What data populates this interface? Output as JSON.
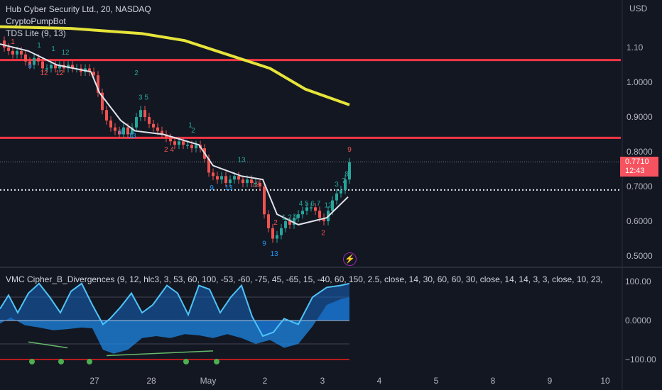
{
  "legend": {
    "symbol": "Hub Cyber Security Ltd., 20, NASDAQ",
    "indicator_1": "CryptoPumpBot",
    "indicator_2": "TDS Lite (9, 13)"
  },
  "price_badge": {
    "price": "0.7710",
    "countdown": "12:43"
  },
  "oscillator_legend": "VMC Cipher_B_Divergences (9, 12, hlc3, 3, 53, 60, 100, -53, -60, -75, 45, -65, 15, -40, 60, 150, 2.5, close, 14, 30, 60, 60, 30, close, 14, 14, 3, 3, close, 10, 23,",
  "colors": {
    "background": "#131722",
    "up": "#26a69a",
    "down": "#ef5350",
    "resistance": "#f23645",
    "ma_long": "#e6e43a",
    "ma_short": "#e0e3eb",
    "wave": "#2962ff"
  },
  "chart_data": [
    {
      "type": "candlestick",
      "title": "Hub Cyber Security Ltd., 20, NASDAQ",
      "currency": "USD",
      "ylim": [
        0.47,
        1.2
      ],
      "y_ticks": [
        "1.10",
        "1.0000",
        "0.9000",
        "0.8000",
        "0.7000",
        "0.6000",
        "0.5000"
      ],
      "x_ticks": [
        "27",
        "28",
        "May",
        "2",
        "3",
        "4",
        "5",
        "8",
        "9",
        "10"
      ],
      "last_price": 0.771,
      "horizontal_levels": [
        1.064,
        0.84
      ],
      "dotted_level": 0.69,
      "close_path": [
        [
          0,
          1.12
        ],
        [
          6,
          1.1
        ],
        [
          12,
          1.09
        ],
        [
          18,
          1.08
        ],
        [
          24,
          1.09
        ],
        [
          30,
          1.08
        ],
        [
          36,
          1.06
        ],
        [
          42,
          1.05
        ],
        [
          48,
          1.07
        ],
        [
          54,
          1.06
        ],
        [
          60,
          1.04
        ],
        [
          66,
          1.04
        ],
        [
          72,
          1.05
        ],
        [
          78,
          1.04
        ],
        [
          84,
          1.05
        ],
        [
          90,
          1.04
        ],
        [
          96,
          1.05
        ],
        [
          102,
          1.04
        ],
        [
          108,
          1.04
        ],
        [
          114,
          1.03
        ],
        [
          120,
          1.04
        ],
        [
          126,
          1.03
        ],
        [
          132,
          1.02
        ],
        [
          138,
          0.97
        ],
        [
          144,
          0.92
        ],
        [
          150,
          0.89
        ],
        [
          156,
          0.87
        ],
        [
          162,
          0.86
        ],
        [
          168,
          0.85
        ],
        [
          174,
          0.87
        ],
        [
          180,
          0.85
        ],
        [
          186,
          0.87
        ],
        [
          192,
          0.9
        ],
        [
          198,
          0.92
        ],
        [
          204,
          0.9
        ],
        [
          210,
          0.88
        ],
        [
          216,
          0.87
        ],
        [
          222,
          0.86
        ],
        [
          228,
          0.85
        ],
        [
          234,
          0.84
        ],
        [
          240,
          0.83
        ],
        [
          246,
          0.82
        ],
        [
          252,
          0.83
        ],
        [
          258,
          0.82
        ],
        [
          264,
          0.82
        ],
        [
          270,
          0.81
        ],
        [
          276,
          0.82
        ],
        [
          282,
          0.81
        ],
        [
          288,
          0.78
        ],
        [
          294,
          0.74
        ],
        [
          300,
          0.73
        ],
        [
          306,
          0.72
        ],
        [
          312,
          0.73
        ],
        [
          318,
          0.71
        ],
        [
          324,
          0.72
        ],
        [
          330,
          0.73
        ],
        [
          336,
          0.72
        ],
        [
          342,
          0.71
        ],
        [
          348,
          0.72
        ],
        [
          354,
          0.71
        ],
        [
          360,
          0.71
        ],
        [
          366,
          0.7
        ],
        [
          372,
          0.62
        ],
        [
          378,
          0.58
        ],
        [
          384,
          0.55
        ],
        [
          390,
          0.56
        ],
        [
          396,
          0.58
        ],
        [
          402,
          0.6
        ],
        [
          408,
          0.59
        ],
        [
          414,
          0.61
        ],
        [
          420,
          0.62
        ],
        [
          426,
          0.63
        ],
        [
          432,
          0.64
        ],
        [
          438,
          0.64
        ],
        [
          444,
          0.63
        ],
        [
          450,
          0.61
        ],
        [
          456,
          0.6
        ],
        [
          462,
          0.63
        ],
        [
          468,
          0.66
        ],
        [
          474,
          0.68
        ],
        [
          480,
          0.69
        ],
        [
          486,
          0.72
        ],
        [
          492,
          0.77
        ]
      ],
      "sma_path": [
        [
          0,
          1.11
        ],
        [
          40,
          1.09
        ],
        [
          80,
          1.05
        ],
        [
          128,
          1.03
        ],
        [
          140,
          0.97
        ],
        [
          170,
          0.89
        ],
        [
          190,
          0.86
        ],
        [
          230,
          0.85
        ],
        [
          280,
          0.82
        ],
        [
          300,
          0.76
        ],
        [
          340,
          0.73
        ],
        [
          370,
          0.72
        ],
        [
          390,
          0.62
        ],
        [
          420,
          0.59
        ],
        [
          460,
          0.61
        ],
        [
          490,
          0.67
        ]
      ],
      "long_ma_path": [
        [
          0,
          1.16
        ],
        [
          100,
          1.155
        ],
        [
          200,
          1.14
        ],
        [
          260,
          1.12
        ],
        [
          320,
          1.08
        ],
        [
          380,
          1.04
        ],
        [
          430,
          0.98
        ],
        [
          492,
          0.935
        ]
      ],
      "td_labels": [
        {
          "x": 18,
          "y": 1.11,
          "t": "1",
          "c": "down"
        },
        {
          "x": 42,
          "y": 1.04,
          "t": "9",
          "c": "blue"
        },
        {
          "x": 55,
          "y": 1.1,
          "t": "1",
          "c": "up"
        },
        {
          "x": 75,
          "y": 1.09,
          "t": "1",
          "c": "up"
        },
        {
          "x": 92,
          "y": 1.08,
          "t": "12",
          "c": "up"
        },
        {
          "x": 62,
          "y": 1.02,
          "t": "12",
          "c": "down"
        },
        {
          "x": 84,
          "y": 1.02,
          "t": "12",
          "c": "down"
        },
        {
          "x": 192,
          "y": 1.02,
          "t": "2",
          "c": "up"
        },
        {
          "x": 202,
          "y": 0.95,
          "t": "3 5",
          "c": "up"
        },
        {
          "x": 170,
          "y": 0.85,
          "t": "9",
          "c": "blue"
        },
        {
          "x": 186,
          "y": 0.84,
          "t": "13",
          "c": "blue"
        },
        {
          "x": 268,
          "y": 0.87,
          "t": "1",
          "c": "up"
        },
        {
          "x": 272,
          "y": 0.855,
          "t": "2",
          "c": "up"
        },
        {
          "x": 238,
          "y": 0.8,
          "t": "2 4",
          "c": "down"
        },
        {
          "x": 298,
          "y": 0.69,
          "t": "9",
          "c": "blue"
        },
        {
          "x": 322,
          "y": 0.69,
          "t": "13",
          "c": "blue"
        },
        {
          "x": 340,
          "y": 0.77,
          "t": "13",
          "c": "up"
        },
        {
          "x": 360,
          "y": 0.7,
          "t": "12",
          "c": "down"
        },
        {
          "x": 372,
          "y": 0.53,
          "t": "9",
          "c": "blue"
        },
        {
          "x": 386,
          "y": 0.5,
          "t": "13",
          "c": "blue"
        },
        {
          "x": 388,
          "y": 0.59,
          "t": "2",
          "c": "down"
        },
        {
          "x": 408,
          "y": 0.605,
          "t": "1 2 3",
          "c": "up"
        },
        {
          "x": 436,
          "y": 0.645,
          "t": "4 5 6 7",
          "c": "up"
        },
        {
          "x": 455,
          "y": 0.56,
          "t": "2",
          "c": "down"
        },
        {
          "x": 462,
          "y": 0.64,
          "t": "12",
          "c": "up"
        },
        {
          "x": 474,
          "y": 0.7,
          "t": "3",
          "c": "up"
        },
        {
          "x": 484,
          "y": 0.71,
          "t": "7",
          "c": "up"
        },
        {
          "x": 488,
          "y": 0.73,
          "t": "8",
          "c": "up"
        },
        {
          "x": 492,
          "y": 0.8,
          "t": "9",
          "c": "down"
        }
      ]
    },
    {
      "type": "area",
      "title": "VMC Cipher_B_Divergences",
      "ylim": [
        -110,
        110
      ],
      "y_ticks": [
        "100.00",
        "0.0000",
        "−100.00"
      ],
      "wave_path": [
        [
          0,
          -8
        ],
        [
          15,
          8
        ],
        [
          35,
          -12
        ],
        [
          55,
          -18
        ],
        [
          75,
          -25
        ],
        [
          95,
          -22
        ],
        [
          115,
          -18
        ],
        [
          130,
          -20
        ],
        [
          145,
          -75
        ],
        [
          160,
          -85
        ],
        [
          180,
          -75
        ],
        [
          200,
          -45
        ],
        [
          220,
          -40
        ],
        [
          240,
          -45
        ],
        [
          260,
          -35
        ],
        [
          280,
          -38
        ],
        [
          300,
          -45
        ],
        [
          320,
          -35
        ],
        [
          340,
          -45
        ],
        [
          360,
          -60
        ],
        [
          380,
          -50
        ],
        [
          400,
          -70
        ],
        [
          420,
          -60
        ],
        [
          440,
          -15
        ],
        [
          460,
          40
        ],
        [
          480,
          55
        ],
        [
          492,
          60
        ]
      ],
      "fast_line": [
        [
          0,
          30
        ],
        [
          12,
          65
        ],
        [
          25,
          20
        ],
        [
          40,
          70
        ],
        [
          55,
          95
        ],
        [
          70,
          60
        ],
        [
          85,
          20
        ],
        [
          100,
          75
        ],
        [
          115,
          95
        ],
        [
          130,
          40
        ],
        [
          145,
          -10
        ],
        [
          155,
          5
        ],
        [
          170,
          35
        ],
        [
          185,
          70
        ],
        [
          200,
          20
        ],
        [
          215,
          40
        ],
        [
          235,
          90
        ],
        [
          250,
          70
        ],
        [
          265,
          15
        ],
        [
          280,
          90
        ],
        [
          295,
          80
        ],
        [
          310,
          20
        ],
        [
          325,
          60
        ],
        [
          340,
          90
        ],
        [
          355,
          10
        ],
        [
          370,
          -40
        ],
        [
          385,
          -30
        ],
        [
          400,
          5
        ],
        [
          420,
          -10
        ],
        [
          440,
          60
        ],
        [
          460,
          85
        ],
        [
          480,
          90
        ],
        [
          492,
          95
        ]
      ],
      "green_dots_x": [
        45,
        86,
        126,
        262,
        305
      ]
    }
  ]
}
